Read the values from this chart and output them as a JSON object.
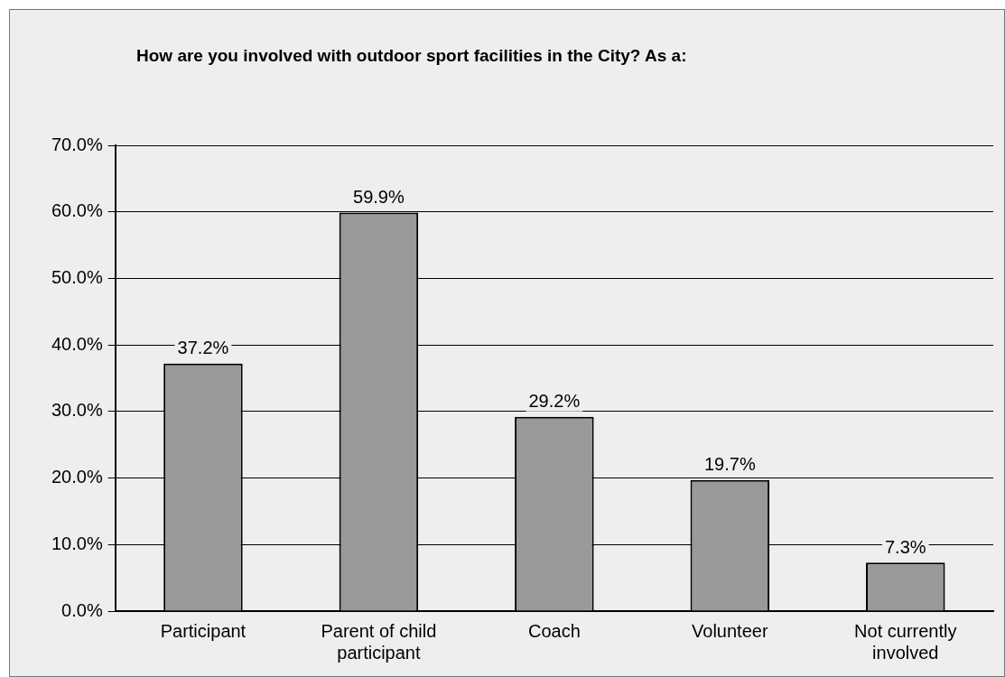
{
  "chart_data": {
    "type": "bar",
    "title": "How are you involved with outdoor sport facilities in the City?  As a:",
    "categories": [
      [
        "Participant"
      ],
      [
        "Parent of child",
        "participant"
      ],
      [
        "Coach"
      ],
      [
        "Volunteer"
      ],
      [
        "Not currently",
        "involved"
      ]
    ],
    "values": [
      37.2,
      59.9,
      29.2,
      19.7,
      7.3
    ],
    "value_labels": [
      "37.2%",
      "59.9%",
      "29.2%",
      "19.7%",
      "7.3%"
    ],
    "color": "#999999",
    "ylim": [
      0,
      70
    ],
    "yticks": [
      {
        "value": 0,
        "label": "0.0%"
      },
      {
        "value": 10,
        "label": "10.0%"
      },
      {
        "value": 20,
        "label": "20.0%"
      },
      {
        "value": 30,
        "label": "30.0%"
      },
      {
        "value": 40,
        "label": "40.0%"
      },
      {
        "value": 50,
        "label": "50.0%"
      },
      {
        "value": 60,
        "label": "60.0%"
      },
      {
        "value": 70,
        "label": "70.0%"
      }
    ],
    "grid": "y",
    "legend": false
  }
}
